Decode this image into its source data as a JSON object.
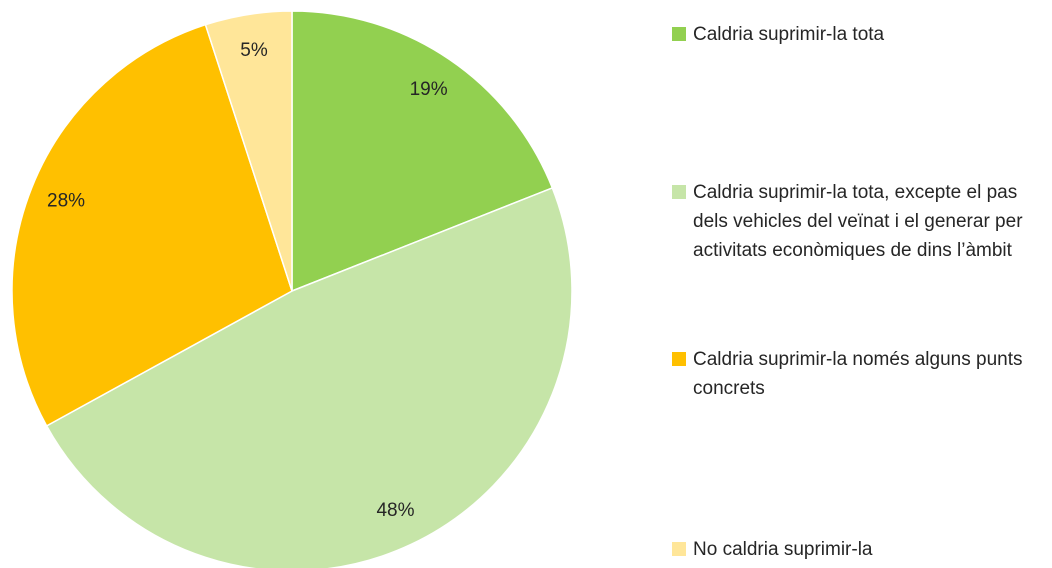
{
  "chart_data": {
    "type": "pie",
    "categories": [
      "Caldria suprimir-la tota",
      "Caldria suprimir-la tota, excepte el pas dels vehicles del veïnat i el generar per activitats econòmiques de dins l’àmbit",
      "Caldria suprimir-la només alguns punts concrets",
      "No caldria suprimir-la"
    ],
    "values": [
      19,
      48,
      28,
      5
    ],
    "value_labels": [
      "19%",
      "48%",
      "28%",
      "5%"
    ],
    "colors": [
      "#92d050",
      "#c6e5a8",
      "#ffc000",
      "#ffe699"
    ]
  }
}
